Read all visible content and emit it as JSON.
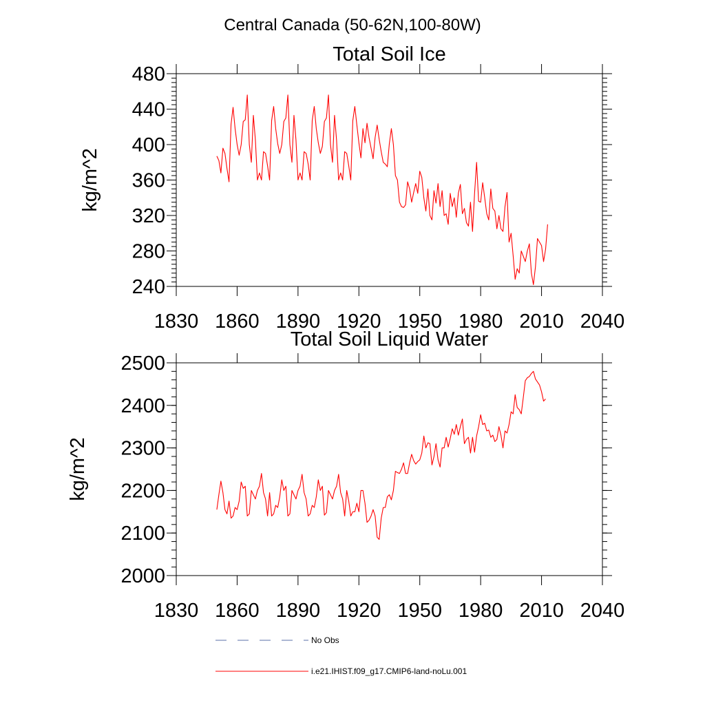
{
  "page_title": "Central Canada (50-62N,100-80W)",
  "legend": {
    "obs_label": "No Obs",
    "model_label": "i.e21.IHIST.f09_g17.CMIP6-land-noLu.001",
    "obs_color": "#5a6fa8",
    "model_color": "#ff0000"
  },
  "chart_data": [
    {
      "type": "line",
      "title": "Total Soil Ice",
      "xlabel": "",
      "ylabel": "kg/m^2",
      "xlim": [
        1830,
        2040
      ],
      "ylim": [
        240,
        480
      ],
      "xticks": [
        1830,
        1860,
        1890,
        1920,
        1950,
        1980,
        2010,
        2040
      ],
      "yticks": [
        240,
        280,
        320,
        360,
        400,
        440,
        480
      ],
      "grid": false,
      "series": [
        {
          "name": "i.e21.IHIST.f09_g17.CMIP6-land-noLu.001",
          "color": "#ff0000",
          "x_start": 1850,
          "x_step": 1,
          "values": [
            387,
            382,
            368,
            396,
            390,
            373,
            358,
            423,
            442,
            418,
            400,
            388,
            400,
            426,
            428,
            456,
            400,
            380,
            433,
            405,
            360,
            368,
            360,
            392,
            390,
            376,
            360,
            427,
            443,
            418,
            401,
            390,
            400,
            426,
            430,
            456,
            400,
            380,
            433,
            405,
            360,
            368,
            360,
            392,
            390,
            378,
            360,
            427,
            443,
            418,
            402,
            390,
            398,
            426,
            430,
            456,
            400,
            380,
            433,
            405,
            360,
            368,
            360,
            392,
            390,
            376,
            360,
            427,
            443,
            422,
            402,
            385,
            418,
            402,
            424,
            408,
            396,
            384,
            408,
            422,
            406,
            392,
            380,
            378,
            375,
            401,
            418,
            400,
            365,
            360,
            335,
            330,
            329,
            332,
            358,
            350,
            335,
            346,
            356,
            345,
            370,
            363,
            340,
            325,
            350,
            320,
            315,
            348,
            334,
            356,
            330,
            348,
            320,
            322,
            310,
            345,
            330,
            340,
            318,
            345,
            355,
            322,
            328,
            312,
            308,
            335,
            302,
            345,
            380,
            336,
            335,
            357,
            340,
            322,
            315,
            350,
            328,
            325,
            305,
            320,
            305,
            302,
            330,
            346,
            290,
            300,
            275,
            248,
            260,
            255,
            280,
            274,
            268,
            280,
            288,
            255,
            242,
            262,
            294,
            290,
            286,
            268,
            282,
            310
          ]
        }
      ]
    },
    {
      "type": "line",
      "title": "Total Soil Liquid Water",
      "xlabel": "",
      "ylabel": "kg/m^2",
      "xlim": [
        1830,
        2040
      ],
      "ylim": [
        2000,
        2500
      ],
      "xticks": [
        1830,
        1860,
        1890,
        1920,
        1950,
        1980,
        2010,
        2040
      ],
      "yticks": [
        2000,
        2100,
        2200,
        2300,
        2400,
        2500
      ],
      "grid": false,
      "series": [
        {
          "name": "i.e21.IHIST.f09_g17.CMIP6-land-noLu.001",
          "color": "#ff0000",
          "x_start": 1850,
          "x_step": 1,
          "values": [
            2155,
            2190,
            2222,
            2195,
            2155,
            2145,
            2175,
            2135,
            2140,
            2160,
            2155,
            2175,
            2220,
            2205,
            2210,
            2140,
            2145,
            2200,
            2190,
            2180,
            2200,
            2210,
            2240,
            2195,
            2180,
            2140,
            2195,
            2140,
            2145,
            2165,
            2160,
            2185,
            2225,
            2200,
            2210,
            2140,
            2145,
            2200,
            2190,
            2180,
            2200,
            2210,
            2238,
            2195,
            2180,
            2140,
            2145,
            2165,
            2160,
            2185,
            2225,
            2200,
            2210,
            2142,
            2148,
            2200,
            2190,
            2180,
            2200,
            2210,
            2238,
            2195,
            2180,
            2140,
            2200,
            2175,
            2140,
            2150,
            2150,
            2170,
            2150,
            2200,
            2200,
            2170,
            2125,
            2130,
            2140,
            2155,
            2140,
            2090,
            2085,
            2135,
            2160,
            2160,
            2185,
            2190,
            2178,
            2200,
            2245,
            2242,
            2240,
            2250,
            2265,
            2240,
            2240,
            2265,
            2285,
            2270,
            2262,
            2268,
            2272,
            2288,
            2328,
            2300,
            2312,
            2310,
            2260,
            2280,
            2310,
            2272,
            2255,
            2300,
            2300,
            2325,
            2302,
            2322,
            2345,
            2332,
            2355,
            2330,
            2350,
            2368,
            2310,
            2320,
            2325,
            2288,
            2325,
            2290,
            2328,
            2350,
            2378,
            2355,
            2358,
            2340,
            2342,
            2325,
            2330,
            2315,
            2320,
            2350,
            2330,
            2300,
            2340,
            2335,
            2355,
            2385,
            2380,
            2425,
            2395,
            2390,
            2380,
            2418,
            2458,
            2465,
            2468,
            2475,
            2480,
            2462,
            2455,
            2448,
            2432,
            2410,
            2415
          ]
        }
      ]
    }
  ]
}
